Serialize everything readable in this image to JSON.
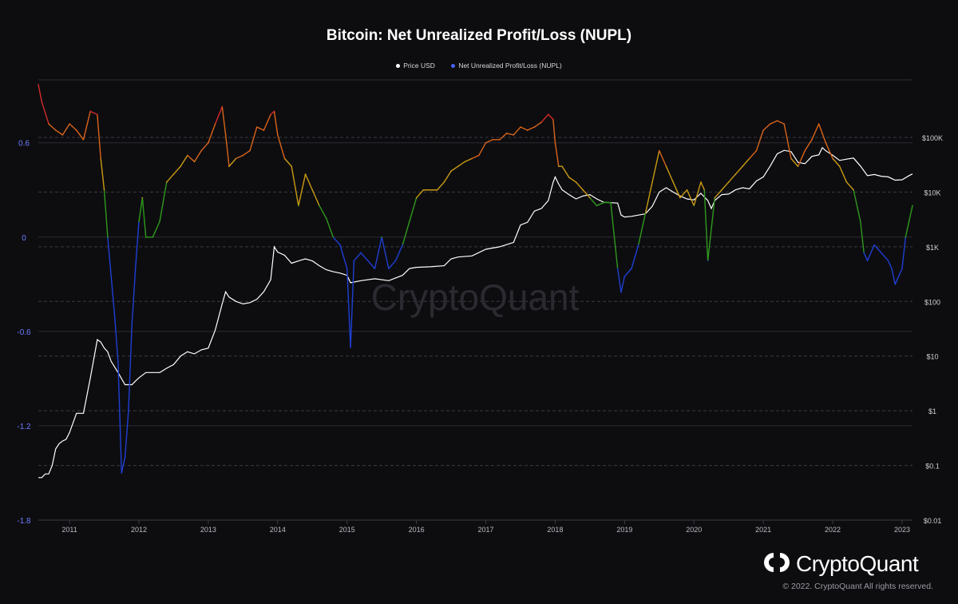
{
  "chart_data": {
    "type": "line",
    "title": "Bitcoin: Net Unrealized Profit/Loss (NUPL)",
    "legend": {
      "position": "top-center",
      "items": [
        {
          "label": "Price USD",
          "color": "#ffffff"
        },
        {
          "label": "Net Unrealized Profit/Loss (NUPL)",
          "color": "#4a63ff"
        }
      ]
    },
    "x_ticks": [
      "2011",
      "2012",
      "2013",
      "2014",
      "2015",
      "2016",
      "2017",
      "2018",
      "2019",
      "2020",
      "2021",
      "2022",
      "2023"
    ],
    "xlim": [
      2010.55,
      2023.15
    ],
    "y_left": {
      "ticks": [
        "0.6",
        "0",
        "-0.6",
        "-1.2",
        "-1.8"
      ],
      "tick_values": [
        0.6,
        0,
        -0.6,
        -1.2,
        -1.8
      ],
      "ylim": [
        -1.8,
        1.0
      ],
      "tick_color": "#6f7cff"
    },
    "y_right": {
      "scale": "log",
      "ticks": [
        "$100K",
        "$10K",
        "$1K",
        "$100",
        "$10",
        "$1",
        "$0.1",
        "$0.01"
      ],
      "tick_values": [
        100000,
        10000,
        1000,
        100,
        10,
        1,
        0.1,
        0.01
      ],
      "ylim": [
        0.01,
        100000
      ]
    },
    "nupl_zone_colors": {
      "capitulation": "#1f3fd4",
      "hope_fear": "#2f9a1c",
      "optimism": "#c99a12",
      "belief_greed": "#d9641a",
      "euphoria": "#d42a2a"
    },
    "series": [
      {
        "name": "Price USD",
        "axis": "right",
        "x": [
          2010.55,
          2010.6,
          2010.65,
          2010.7,
          2010.75,
          2010.8,
          2010.85,
          2010.9,
          2010.95,
          2011.0,
          2011.1,
          2011.2,
          2011.3,
          2011.4,
          2011.45,
          2011.5,
          2011.55,
          2011.6,
          2011.7,
          2011.8,
          2011.9,
          2011.95,
          2012.0,
          2012.1,
          2012.2,
          2012.3,
          2012.4,
          2012.5,
          2012.6,
          2012.7,
          2012.8,
          2012.9,
          2013.0,
          2013.1,
          2013.2,
          2013.25,
          2013.3,
          2013.4,
          2013.5,
          2013.6,
          2013.7,
          2013.8,
          2013.9,
          2013.95,
          2014.0,
          2014.1,
          2014.2,
          2014.3,
          2014.4,
          2014.5,
          2014.6,
          2014.7,
          2014.8,
          2014.9,
          2015.0,
          2015.05,
          2015.2,
          2015.4,
          2015.6,
          2015.8,
          2015.9,
          2016.0,
          2016.2,
          2016.4,
          2016.5,
          2016.6,
          2016.8,
          2017.0,
          2017.2,
          2017.4,
          2017.5,
          2017.6,
          2017.7,
          2017.8,
          2017.9,
          2017.97,
          2018.0,
          2018.05,
          2018.1,
          2018.2,
          2018.3,
          2018.4,
          2018.5,
          2018.6,
          2018.7,
          2018.8,
          2018.9,
          2018.95,
          2019.0,
          2019.1,
          2019.2,
          2019.3,
          2019.4,
          2019.5,
          2019.6,
          2019.7,
          2019.8,
          2019.9,
          2020.0,
          2020.1,
          2020.2,
          2020.25,
          2020.3,
          2020.4,
          2020.5,
          2020.6,
          2020.7,
          2020.8,
          2020.9,
          2021.0,
          2021.1,
          2021.2,
          2021.3,
          2021.4,
          2021.5,
          2021.6,
          2021.7,
          2021.8,
          2021.85,
          2021.9,
          2022.0,
          2022.1,
          2022.2,
          2022.3,
          2022.4,
          2022.5,
          2022.6,
          2022.7,
          2022.8,
          2022.9,
          2023.0,
          2023.1,
          2023.15
        ],
        "y": [
          0.06,
          0.06,
          0.07,
          0.07,
          0.1,
          0.2,
          0.25,
          0.28,
          0.3,
          0.4,
          0.9,
          0.9,
          4,
          20,
          18,
          14,
          12,
          8,
          5,
          3,
          3,
          3.5,
          4,
          5,
          5,
          5,
          6,
          7,
          10,
          12,
          11,
          13,
          14,
          30,
          90,
          150,
          120,
          100,
          90,
          95,
          110,
          150,
          250,
          1000,
          800,
          700,
          500,
          550,
          600,
          550,
          450,
          380,
          350,
          330,
          300,
          220,
          240,
          260,
          240,
          300,
          400,
          420,
          430,
          450,
          600,
          650,
          680,
          900,
          1000,
          1200,
          2500,
          2800,
          4500,
          5000,
          7000,
          15000,
          19000,
          14000,
          11000,
          9000,
          7500,
          8500,
          9000,
          7500,
          6500,
          6400,
          6300,
          3800,
          3500,
          3600,
          3800,
          4000,
          5500,
          10000,
          12000,
          10000,
          8500,
          7500,
          7200,
          9500,
          7000,
          5000,
          7000,
          9000,
          9200,
          11000,
          12000,
          11500,
          16000,
          19000,
          30000,
          50000,
          58000,
          55000,
          35000,
          33000,
          45000,
          48000,
          65000,
          57000,
          47000,
          38000,
          40000,
          42000,
          30000,
          20000,
          21000,
          19500,
          19000,
          16500,
          16800,
          20000,
          21500
        ]
      },
      {
        "name": "Net Unrealized Profit/Loss (NUPL)",
        "axis": "left",
        "x": [
          2010.55,
          2010.6,
          2010.7,
          2010.8,
          2010.9,
          2011.0,
          2011.1,
          2011.2,
          2011.3,
          2011.4,
          2011.45,
          2011.5,
          2011.55,
          2011.6,
          2011.65,
          2011.7,
          2011.75,
          2011.8,
          2011.85,
          2011.9,
          2011.95,
          2012.0,
          2012.05,
          2012.1,
          2012.2,
          2012.3,
          2012.4,
          2012.5,
          2012.6,
          2012.7,
          2012.8,
          2012.9,
          2013.0,
          2013.1,
          2013.2,
          2013.25,
          2013.3,
          2013.4,
          2013.5,
          2013.6,
          2013.7,
          2013.8,
          2013.9,
          2013.95,
          2014.0,
          2014.1,
          2014.2,
          2014.3,
          2014.4,
          2014.5,
          2014.6,
          2014.7,
          2014.8,
          2014.9,
          2015.0,
          2015.05,
          2015.1,
          2015.2,
          2015.3,
          2015.4,
          2015.5,
          2015.6,
          2015.7,
          2015.8,
          2015.9,
          2016.0,
          2016.1,
          2016.2,
          2016.3,
          2016.4,
          2016.5,
          2016.6,
          2016.7,
          2016.8,
          2016.9,
          2017.0,
          2017.1,
          2017.2,
          2017.3,
          2017.4,
          2017.5,
          2017.6,
          2017.7,
          2017.8,
          2017.9,
          2017.97,
          2018.0,
          2018.05,
          2018.1,
          2018.2,
          2018.3,
          2018.4,
          2018.5,
          2018.6,
          2018.7,
          2018.8,
          2018.9,
          2018.95,
          2019.0,
          2019.1,
          2019.2,
          2019.3,
          2019.4,
          2019.5,
          2019.6,
          2019.7,
          2019.8,
          2019.9,
          2020.0,
          2020.1,
          2020.15,
          2020.2,
          2020.3,
          2020.4,
          2020.5,
          2020.6,
          2020.7,
          2020.8,
          2020.9,
          2021.0,
          2021.1,
          2021.2,
          2021.3,
          2021.4,
          2021.5,
          2021.6,
          2021.7,
          2021.8,
          2021.85,
          2021.9,
          2022.0,
          2022.1,
          2022.2,
          2022.3,
          2022.4,
          2022.45,
          2022.5,
          2022.6,
          2022.7,
          2022.8,
          2022.85,
          2022.9,
          2023.0,
          2023.05,
          2023.1,
          2023.15
        ],
        "y": [
          0.97,
          0.86,
          0.72,
          0.68,
          0.65,
          0.72,
          0.68,
          0.62,
          0.8,
          0.78,
          0.5,
          0.3,
          0.0,
          -0.25,
          -0.5,
          -0.8,
          -1.5,
          -1.4,
          -1.1,
          -0.55,
          -0.2,
          0.1,
          0.25,
          0.0,
          0.0,
          0.1,
          0.35,
          0.4,
          0.45,
          0.52,
          0.48,
          0.55,
          0.6,
          0.72,
          0.83,
          0.65,
          0.45,
          0.5,
          0.52,
          0.55,
          0.7,
          0.68,
          0.78,
          0.8,
          0.65,
          0.5,
          0.45,
          0.2,
          0.4,
          0.3,
          0.2,
          0.12,
          0.0,
          -0.05,
          -0.2,
          -0.7,
          -0.15,
          -0.1,
          -0.15,
          -0.2,
          0.0,
          -0.2,
          -0.15,
          -0.05,
          0.1,
          0.25,
          0.3,
          0.3,
          0.3,
          0.35,
          0.42,
          0.45,
          0.48,
          0.5,
          0.52,
          0.6,
          0.62,
          0.62,
          0.66,
          0.65,
          0.7,
          0.68,
          0.7,
          0.73,
          0.78,
          0.75,
          0.6,
          0.45,
          0.45,
          0.38,
          0.35,
          0.3,
          0.25,
          0.2,
          0.22,
          0.22,
          -0.2,
          -0.35,
          -0.25,
          -0.2,
          -0.05,
          0.15,
          0.35,
          0.55,
          0.45,
          0.35,
          0.25,
          0.3,
          0.2,
          0.35,
          0.3,
          -0.15,
          0.25,
          0.3,
          0.35,
          0.4,
          0.45,
          0.5,
          0.55,
          0.68,
          0.72,
          0.74,
          0.72,
          0.5,
          0.45,
          0.55,
          0.62,
          0.72,
          0.66,
          0.6,
          0.5,
          0.45,
          0.35,
          0.3,
          0.1,
          -0.1,
          -0.15,
          -0.05,
          -0.1,
          -0.15,
          -0.2,
          -0.3,
          -0.2,
          0.0,
          0.1,
          0.2
        ]
      }
    ]
  },
  "watermark": "CryptoQuant",
  "brand": {
    "name": "CryptoQuant",
    "icon": "cryptoquant-logo-icon"
  },
  "copyright": "© 2022. CryptoQuant All rights reserved."
}
